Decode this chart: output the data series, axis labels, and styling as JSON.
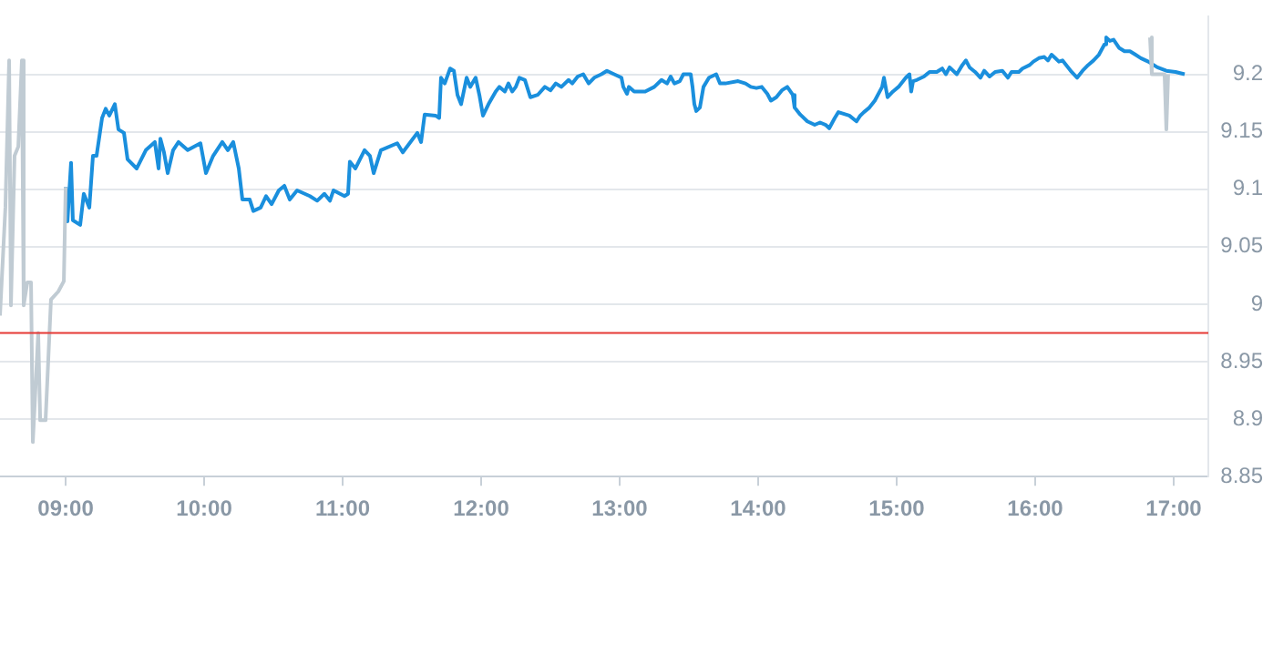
{
  "chart_data": {
    "type": "line",
    "xlim": [
      8.526,
      17.25
    ],
    "xticks": [
      {
        "value": 9,
        "label": "09:00"
      },
      {
        "value": 10,
        "label": "10:00"
      },
      {
        "value": 11,
        "label": "11:00"
      },
      {
        "value": 12,
        "label": "12:00"
      },
      {
        "value": 13,
        "label": "13:00"
      },
      {
        "value": 14,
        "label": "14:00"
      },
      {
        "value": 15,
        "label": "15:00"
      },
      {
        "value": 16,
        "label": "16:00"
      },
      {
        "value": 17,
        "label": "17:00"
      }
    ],
    "ylim": [
      8.85,
      9.25
    ],
    "yticks": [
      8.85,
      8.9,
      8.95,
      9,
      9.05,
      9.1,
      9.15,
      9.2
    ],
    "grid": "y",
    "legend": false,
    "marker": "none",
    "line_style": "solid",
    "ref_lines": [
      {
        "axis": "y",
        "value": 8.975,
        "color": "#e53935"
      }
    ],
    "series": [
      {
        "color": "#c0cbd3",
        "x": [
          8.526,
          8.565,
          8.592,
          8.605,
          8.631,
          8.658,
          8.684,
          8.697,
          8.723,
          8.75,
          8.763,
          8.802,
          8.816,
          8.855,
          8.894,
          8.947,
          8.987,
          9.0
        ],
        "values": [
          8.99,
          9.084,
          9.212,
          8.999,
          9.129,
          9.137,
          9.212,
          8.999,
          9.019,
          9.019,
          8.88,
          8.975,
          8.899,
          8.899,
          9.004,
          9.011,
          9.02,
          9.102
        ]
      },
      {
        "color": "#c0cbd3",
        "x": [
          16.829,
          16.842,
          16.934,
          16.947,
          16.96
        ],
        "values": [
          9.232,
          9.2,
          9.2,
          9.152,
          9.2
        ]
      },
      {
        "color": "#1a8fdd",
        "x": [
          9.0,
          9.013,
          9.039,
          9.052,
          9.105,
          9.131,
          9.171,
          9.197,
          9.223,
          9.263,
          9.289,
          9.315,
          9.355,
          9.381,
          9.421,
          9.447,
          9.513,
          9.579,
          9.644,
          9.671,
          9.684,
          9.71,
          9.737,
          9.776,
          9.815,
          9.881,
          9.973,
          10.013,
          10.065,
          10.131,
          10.171,
          10.21,
          10.25,
          10.276,
          10.329,
          10.355,
          10.408,
          10.447,
          10.487,
          10.539,
          10.579,
          10.618,
          10.671,
          10.763,
          10.816,
          10.868,
          10.908,
          10.934,
          11.013,
          11.039,
          11.052,
          11.092,
          11.158,
          11.197,
          11.224,
          11.276,
          11.394,
          11.434,
          11.539,
          11.566,
          11.592,
          11.671,
          11.697,
          11.71,
          11.737,
          11.776,
          11.803,
          11.829,
          11.855,
          11.895,
          11.921,
          11.96,
          11.987,
          12.013,
          12.053,
          12.105,
          12.131,
          12.171,
          12.197,
          12.224,
          12.25,
          12.276,
          12.316,
          12.355,
          12.408,
          12.46,
          12.5,
          12.539,
          12.579,
          12.631,
          12.658,
          12.697,
          12.737,
          12.776,
          12.816,
          12.868,
          12.908,
          12.96,
          13.013,
          13.026,
          13.053,
          13.066,
          13.105,
          13.184,
          13.25,
          13.302,
          13.342,
          13.368,
          13.395,
          13.434,
          13.46,
          13.513,
          13.526,
          13.539,
          13.553,
          13.579,
          13.605,
          13.645,
          13.697,
          13.724,
          13.763,
          13.855,
          13.908,
          13.947,
          13.987,
          14.026,
          14.066,
          14.092,
          14.131,
          14.171,
          14.21,
          14.25,
          14.263,
          14.303,
          14.355,
          14.408,
          14.447,
          14.487,
          14.513,
          14.553,
          14.579,
          14.658,
          14.71,
          14.737,
          14.763,
          14.803,
          14.842,
          14.895,
          14.908,
          14.934,
          14.973,
          15.013,
          15.066,
          15.092,
          15.105,
          15.118,
          15.145,
          15.197,
          15.237,
          15.289,
          15.329,
          15.355,
          15.382,
          15.434,
          15.474,
          15.5,
          15.526,
          15.566,
          15.605,
          15.632,
          15.671,
          15.711,
          15.763,
          15.803,
          15.829,
          15.882,
          15.908,
          15.96,
          15.987,
          16.026,
          16.066,
          16.092,
          16.118,
          16.145,
          16.171,
          16.197,
          16.224,
          16.263,
          16.303,
          16.342,
          16.382,
          16.421,
          16.46,
          16.5,
          16.513,
          16.539,
          16.566,
          16.605,
          16.645,
          16.684,
          16.724,
          16.763,
          16.816,
          16.882,
          16.947,
          17.013,
          17.079
        ],
        "values": [
          9.102,
          9.072,
          9.123,
          9.073,
          9.069,
          9.096,
          9.084,
          9.129,
          9.129,
          9.162,
          9.17,
          9.164,
          9.174,
          9.152,
          9.149,
          9.126,
          9.118,
          9.134,
          9.141,
          9.118,
          9.144,
          9.132,
          9.114,
          9.134,
          9.141,
          9.134,
          9.14,
          9.114,
          9.129,
          9.141,
          9.134,
          9.141,
          9.118,
          9.091,
          9.091,
          9.081,
          9.084,
          9.094,
          9.087,
          9.099,
          9.103,
          9.091,
          9.099,
          9.094,
          9.09,
          9.096,
          9.09,
          9.099,
          9.094,
          9.096,
          9.124,
          9.118,
          9.134,
          9.129,
          9.114,
          9.134,
          9.14,
          9.132,
          9.149,
          9.141,
          9.165,
          9.164,
          9.162,
          9.197,
          9.192,
          9.205,
          9.203,
          9.182,
          9.174,
          9.197,
          9.189,
          9.197,
          9.182,
          9.164,
          9.174,
          9.185,
          9.189,
          9.185,
          9.192,
          9.185,
          9.189,
          9.197,
          9.195,
          9.18,
          9.182,
          9.189,
          9.186,
          9.192,
          9.189,
          9.195,
          9.192,
          9.198,
          9.2,
          9.192,
          9.197,
          9.2,
          9.203,
          9.2,
          9.197,
          9.189,
          9.183,
          9.189,
          9.185,
          9.185,
          9.189,
          9.195,
          9.192,
          9.198,
          9.192,
          9.194,
          9.2,
          9.2,
          9.189,
          9.174,
          9.168,
          9.171,
          9.189,
          9.197,
          9.2,
          9.192,
          9.192,
          9.194,
          9.192,
          9.189,
          9.188,
          9.189,
          9.183,
          9.177,
          9.18,
          9.186,
          9.189,
          9.182,
          9.171,
          9.165,
          9.159,
          9.156,
          9.158,
          9.156,
          9.153,
          9.162,
          9.167,
          9.164,
          9.159,
          9.164,
          9.167,
          9.171,
          9.177,
          9.189,
          9.197,
          9.18,
          9.185,
          9.189,
          9.197,
          9.2,
          9.185,
          9.194,
          9.195,
          9.198,
          9.202,
          9.202,
          9.205,
          9.2,
          9.206,
          9.2,
          9.208,
          9.212,
          9.206,
          9.202,
          9.197,
          9.203,
          9.198,
          9.202,
          9.203,
          9.197,
          9.202,
          9.202,
          9.205,
          9.208,
          9.211,
          9.214,
          9.215,
          9.212,
          9.217,
          9.214,
          9.211,
          9.212,
          9.208,
          9.202,
          9.197,
          9.203,
          9.208,
          9.212,
          9.217,
          9.226,
          9.232,
          9.229,
          9.23,
          9.223,
          9.22,
          9.22,
          9.217,
          9.214,
          9.211,
          9.206,
          9.203,
          9.202,
          9.2
        ]
      }
    ]
  }
}
